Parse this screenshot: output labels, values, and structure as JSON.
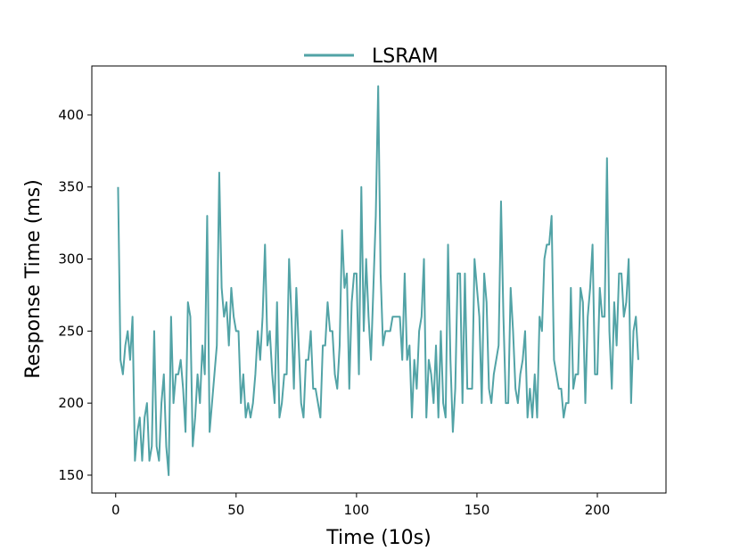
{
  "chart_data": {
    "type": "line",
    "xlabel": "Time (10s)",
    "ylabel": "Response Time (ms)",
    "x": [
      1,
      2,
      3,
      4,
      5,
      6,
      7,
      8,
      9,
      10,
      11,
      12,
      13,
      14,
      15,
      16,
      17,
      18,
      19,
      20,
      21,
      22,
      23,
      24,
      25,
      26,
      27,
      28,
      29,
      30,
      31,
      32,
      33,
      34,
      35,
      36,
      37,
      38,
      39,
      40,
      41,
      42,
      43,
      44,
      45,
      46,
      47,
      48,
      49,
      50,
      51,
      52,
      53,
      54,
      55,
      56,
      57,
      58,
      59,
      60,
      61,
      62,
      63,
      64,
      65,
      66,
      67,
      68,
      69,
      70,
      71,
      72,
      73,
      74,
      75,
      76,
      77,
      78,
      79,
      80,
      81,
      82,
      83,
      84,
      85,
      86,
      87,
      88,
      89,
      90,
      91,
      92,
      93,
      94,
      95,
      96,
      97,
      98,
      99,
      100,
      101,
      102,
      103,
      104,
      105,
      106,
      107,
      108,
      109,
      110,
      111,
      112,
      113,
      114,
      115,
      116,
      117,
      118,
      119,
      120,
      121,
      122,
      123,
      124,
      125,
      126,
      127,
      128,
      129,
      130,
      131,
      132,
      133,
      134,
      135,
      136,
      137,
      138,
      139,
      140,
      141,
      142,
      143,
      144,
      145,
      146,
      147,
      148,
      149,
      150,
      151,
      152,
      153,
      154,
      155,
      156,
      157,
      158,
      159,
      160,
      161,
      162,
      163,
      164,
      165,
      166,
      167,
      168,
      169,
      170,
      171,
      172,
      173,
      174,
      175,
      176,
      177,
      178,
      179,
      180,
      181,
      182,
      183,
      184,
      185,
      186,
      187,
      188,
      189,
      190,
      191,
      192,
      193,
      194,
      195,
      196,
      197,
      198,
      199,
      200,
      201,
      202,
      203,
      204,
      205,
      206,
      207,
      208,
      209,
      210,
      211,
      212,
      213,
      214,
      215,
      216,
      217
    ],
    "series": [
      {
        "name": "LSRAM",
        "color": "#52a3a6",
        "values": [
          350,
          230,
          220,
          240,
          250,
          230,
          260,
          160,
          180,
          190,
          160,
          190,
          200,
          160,
          170,
          250,
          170,
          160,
          200,
          220,
          170,
          150,
          260,
          200,
          220,
          220,
          230,
          210,
          180,
          270,
          260,
          170,
          190,
          220,
          200,
          240,
          220,
          330,
          180,
          200,
          220,
          240,
          360,
          280,
          260,
          270,
          240,
          280,
          260,
          250,
          250,
          200,
          220,
          190,
          200,
          190,
          200,
          220,
          250,
          230,
          260,
          310,
          240,
          250,
          220,
          200,
          270,
          190,
          200,
          220,
          220,
          300,
          260,
          210,
          280,
          240,
          200,
          190,
          230,
          230,
          250,
          210,
          210,
          200,
          190,
          240,
          240,
          270,
          250,
          250,
          220,
          210,
          240,
          320,
          280,
          290,
          210,
          270,
          290,
          290,
          220,
          350,
          250,
          300,
          260,
          230,
          280,
          330,
          420,
          290,
          240,
          250,
          250,
          250,
          260,
          260,
          260,
          260,
          230,
          290,
          230,
          240,
          190,
          230,
          210,
          250,
          260,
          300,
          190,
          230,
          220,
          200,
          240,
          190,
          250,
          200,
          190,
          310,
          230,
          180,
          210,
          290,
          290,
          200,
          290,
          210,
          210,
          210,
          300,
          280,
          260,
          200,
          290,
          270,
          210,
          200,
          220,
          230,
          240,
          340,
          260,
          200,
          200,
          280,
          250,
          210,
          200,
          220,
          230,
          250,
          190,
          210,
          190,
          220,
          190,
          260,
          250,
          300,
          310,
          310,
          330,
          230,
          220,
          210,
          210,
          190,
          200,
          200,
          280,
          210,
          220,
          220,
          280,
          270,
          200,
          260,
          280,
          310,
          220,
          220,
          280,
          260,
          260,
          370,
          250,
          210,
          270,
          240,
          290,
          290,
          260,
          270,
          300,
          200,
          250,
          260,
          230
        ]
      }
    ],
    "xlim": [
      -9.9,
      228.5
    ],
    "ylim": [
      137.6,
      434
    ],
    "xticks": [
      0,
      50,
      100,
      150,
      200
    ],
    "yticks": [
      150,
      200,
      250,
      300,
      350,
      400
    ],
    "legend": "top"
  }
}
